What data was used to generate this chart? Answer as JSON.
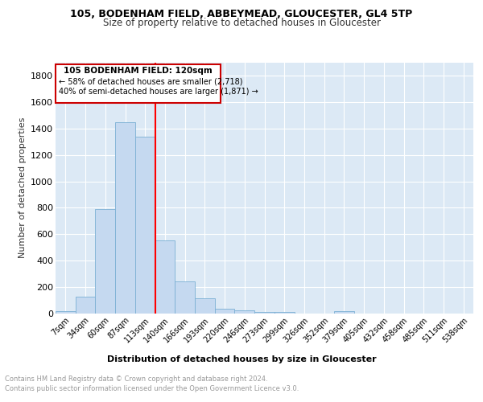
{
  "title1": "105, BODENHAM FIELD, ABBEYMEAD, GLOUCESTER, GL4 5TP",
  "title2": "Size of property relative to detached houses in Gloucester",
  "xlabel": "Distribution of detached houses by size in Gloucester",
  "ylabel": "Number of detached properties",
  "bin_labels": [
    "7sqm",
    "34sqm",
    "60sqm",
    "87sqm",
    "113sqm",
    "140sqm",
    "166sqm",
    "193sqm",
    "220sqm",
    "246sqm",
    "273sqm",
    "299sqm",
    "326sqm",
    "352sqm",
    "379sqm",
    "405sqm",
    "432sqm",
    "458sqm",
    "485sqm",
    "511sqm",
    "538sqm"
  ],
  "bin_values": [
    20,
    130,
    790,
    1450,
    1340,
    555,
    245,
    115,
    35,
    25,
    15,
    15,
    0,
    0,
    20,
    0,
    0,
    0,
    0,
    0,
    0
  ],
  "bar_color": "#c5d9f0",
  "bar_edge_color": "#7bafd4",
  "red_line_x": 4.5,
  "annotation_line1": "105 BODENHAM FIELD: 120sqm",
  "annotation_line2": "← 58% of detached houses are smaller (2,718)",
  "annotation_line3": "40% of semi-detached houses are larger (1,871) →",
  "annotation_box_color": "#ffffff",
  "annotation_box_edge": "#cc0000",
  "footer_line1": "Contains HM Land Registry data © Crown copyright and database right 2024.",
  "footer_line2": "Contains public sector information licensed under the Open Government Licence v3.0.",
  "plot_bg_color": "#dce9f5",
  "ylim": [
    0,
    1900
  ],
  "yticks": [
    0,
    200,
    400,
    600,
    800,
    1000,
    1200,
    1400,
    1600,
    1800
  ]
}
